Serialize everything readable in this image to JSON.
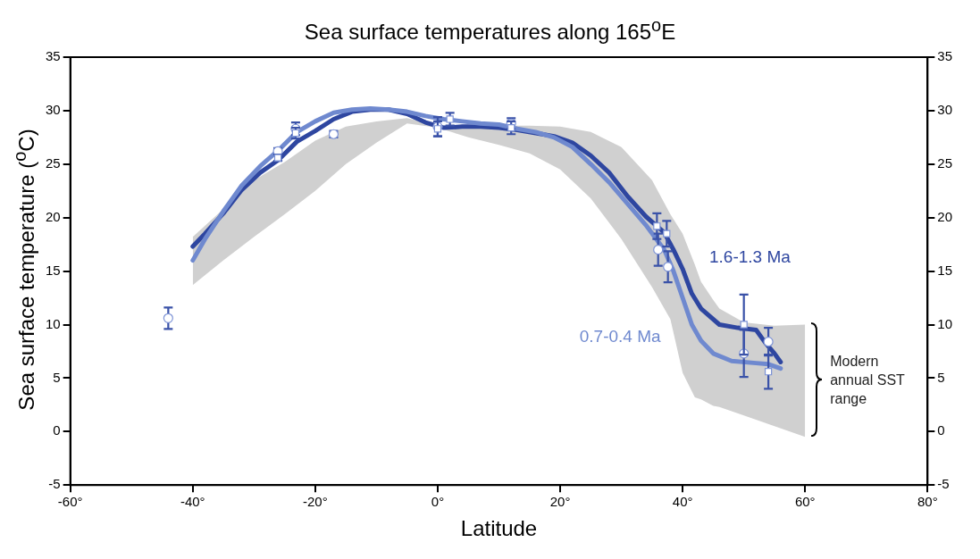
{
  "chart_data": {
    "type": "line",
    "title": "Sea surface temperatures along 165$^{o}$E",
    "xlabel": "Latitude",
    "ylabel": "Sea surface temperature ($^{o}$C)",
    "xlim": [
      -60,
      80
    ],
    "xticks": [
      {
        "value": -60,
        "label": "-60°"
      },
      {
        "value": -40,
        "label": "-40°"
      },
      {
        "value": -20,
        "label": "-20°"
      },
      {
        "value": 0,
        "label": "0°"
      },
      {
        "value": 20,
        "label": "20°"
      },
      {
        "value": 40,
        "label": "40°"
      },
      {
        "value": 60,
        "label": "60°"
      },
      {
        "value": 80,
        "label": "80°"
      }
    ],
    "ylim": [
      -5,
      35
    ],
    "yticks": [
      -5,
      0,
      5,
      10,
      15,
      20,
      25,
      30,
      35
    ],
    "y2lim": [
      -5,
      35
    ],
    "y2ticks": [
      -5,
      0,
      5,
      10,
      15,
      20,
      25,
      30,
      35
    ],
    "grid": false,
    "annotations": [
      "Modern annual SST range"
    ],
    "series": [
      {
        "type": "area",
        "color": "#d0d0d0",
        "x": [
          -40,
          -35,
          -30,
          -25,
          -20,
          -15,
          -10,
          -5,
          0,
          5,
          10,
          15,
          20,
          25,
          30,
          35,
          38,
          40,
          42,
          43,
          45,
          46,
          50,
          55,
          60
        ],
        "values": [
          null,
          null,
          null,
          null,
          null,
          null,
          null,
          null,
          null,
          null,
          null,
          null,
          null,
          null,
          null,
          null,
          null,
          null,
          null,
          null,
          null,
          null,
          null,
          null,
          null
        ],
        "upper": [
          18.2,
          20.8,
          23.5,
          25.2,
          27.2,
          28.5,
          29.0,
          29.3,
          28.6,
          28.5,
          28.6,
          28.6,
          28.5,
          28.0,
          26.6,
          23.5,
          20.3,
          18.5,
          15.6,
          14.0,
          12.3,
          11.5,
          10.2,
          9.9,
          10.0
        ],
        "lower": [
          13.7,
          16.0,
          18.2,
          20.3,
          22.5,
          25.0,
          27.0,
          28.8,
          28.4,
          27.5,
          26.8,
          26.0,
          24.5,
          21.8,
          18.0,
          13.5,
          10.5,
          5.5,
          3.2,
          3.0,
          2.4,
          2.3,
          1.5,
          0.5,
          -0.5
        ]
      },
      {
        "name": "0.7-0.4 Ma",
        "color": "#6f89cf",
        "x": [
          -40,
          -38,
          -35,
          -32,
          -29,
          -26,
          -23,
          -20,
          -17,
          -14,
          -11,
          -8,
          -5,
          -2,
          1,
          4,
          7,
          10,
          13,
          16,
          19,
          22,
          25,
          28,
          31,
          34,
          37,
          38.5,
          40,
          41.5,
          43,
          45,
          48,
          52,
          54,
          56
        ],
        "values": [
          16.0,
          18.0,
          20.6,
          23.0,
          24.8,
          26.3,
          28.0,
          29.0,
          29.8,
          30.1,
          30.2,
          30.1,
          29.9,
          29.5,
          29.2,
          29.0,
          28.8,
          28.7,
          28.3,
          28.0,
          27.5,
          26.6,
          25.0,
          23.3,
          21.3,
          19.3,
          17.0,
          15.0,
          12.5,
          10.0,
          8.5,
          7.3,
          6.6,
          6.4,
          6.3,
          5.9
        ]
      },
      {
        "name": "1.6-1.3 Ma",
        "color": "#2e46a0",
        "x": [
          -40,
          -38,
          -35,
          -32,
          -29,
          -26,
          -23,
          -20,
          -17,
          -14,
          -11,
          -8,
          -5,
          -2,
          1,
          4,
          7,
          10,
          13,
          16,
          19,
          22,
          25,
          28,
          31,
          34,
          37,
          38.5,
          40,
          41.5,
          43,
          46,
          49,
          52,
          53.5,
          55,
          56
        ],
        "values": [
          17.3,
          18.5,
          20.4,
          22.6,
          24.2,
          25.4,
          27.1,
          28.1,
          29.2,
          29.9,
          30.1,
          30.1,
          29.7,
          28.9,
          28.4,
          28.5,
          28.5,
          28.4,
          28.2,
          27.9,
          27.6,
          27.0,
          25.8,
          24.2,
          22.0,
          20.1,
          18.6,
          17.0,
          15.2,
          12.9,
          11.5,
          10.0,
          9.7,
          9.5,
          8.3,
          7.3,
          6.5
        ]
      },
      {
        "type": "scatter",
        "marker": "circle",
        "color": "#ffffff",
        "x": [
          -44,
          -26.1,
          -23.2,
          -17,
          0,
          12,
          36,
          37.6,
          50,
          54
        ],
        "values": [
          10.6,
          26.2,
          28.3,
          27.8,
          28.5,
          28.8,
          17.0,
          15.4,
          7.3,
          8.4
        ],
        "errors": [
          1.0,
          0.3,
          0.6,
          0.3,
          0.9,
          0.5,
          1.5,
          1.45,
          2.2,
          1.3
        ]
      },
      {
        "type": "scatter",
        "marker": "square",
        "color": "#ffffff",
        "x": [
          -26.1,
          -23.2,
          0,
          2,
          12,
          35.8,
          37.4,
          50,
          54
        ],
        "values": [
          25.6,
          27.9,
          28.3,
          29.2,
          28.4,
          19.2,
          18.5,
          10.0,
          5.6
        ],
        "errors": [
          0.3,
          0.5,
          0.7,
          0.6,
          0.6,
          1.2,
          1.2,
          2.8,
          1.6
        ]
      }
    ]
  }
}
